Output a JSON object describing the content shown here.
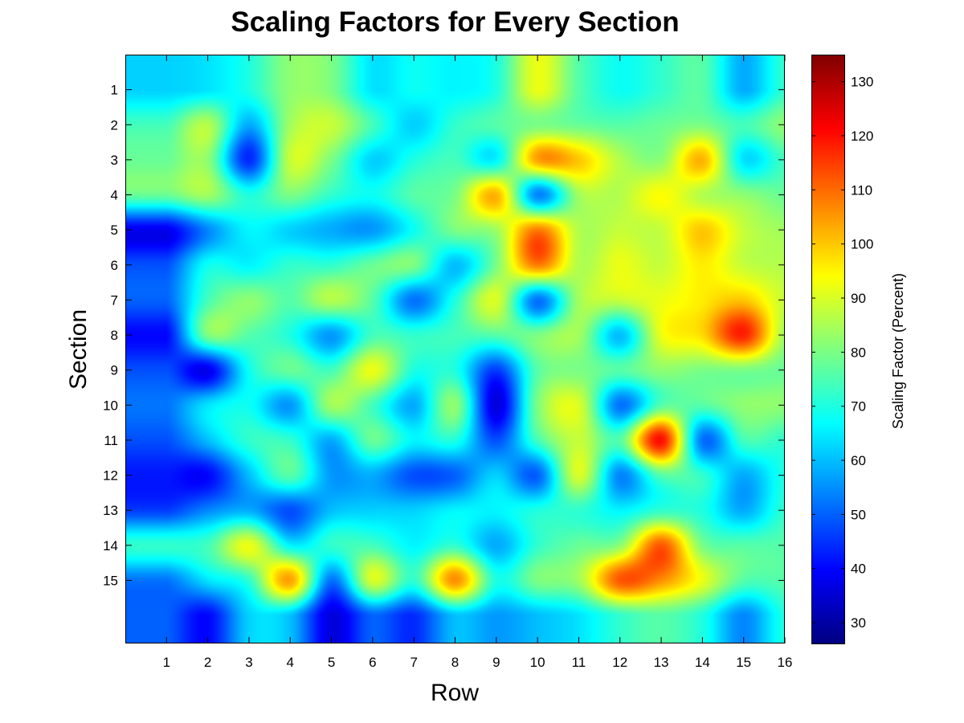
{
  "chart_data": {
    "type": "heatmap",
    "title": "Scaling Factors for Every Section",
    "xlabel": "Row",
    "ylabel": "Section",
    "colorbar_label": "Scaling Factor (Percent)",
    "colormap": "jet",
    "xlim": [
      0,
      16
    ],
    "ylim": [
      0,
      16.8
    ],
    "x_ticks": [
      1,
      2,
      3,
      4,
      5,
      6,
      7,
      8,
      9,
      10,
      11,
      12,
      13,
      14,
      15,
      16
    ],
    "y_ticks": [
      1,
      2,
      3,
      4,
      5,
      6,
      7,
      8,
      9,
      10,
      11,
      12,
      13,
      14,
      15
    ],
    "colorbar_range": [
      26,
      135
    ],
    "colorbar_ticks": [
      30,
      40,
      50,
      60,
      70,
      80,
      90,
      100,
      110,
      120,
      130
    ],
    "rows": [
      1,
      2,
      3,
      4,
      5,
      6,
      7,
      8,
      9,
      10,
      11,
      12,
      13,
      14,
      15,
      16
    ],
    "sections": [
      1,
      2,
      3,
      4,
      5,
      6,
      7,
      8,
      9,
      10,
      11,
      12,
      13,
      14,
      15,
      16
    ],
    "values": [
      [
        62,
        64,
        70,
        82,
        80,
        64,
        68,
        66,
        70,
        92,
        76,
        68,
        72,
        76,
        58,
        72
      ],
      [
        74,
        86,
        58,
        84,
        88,
        74,
        62,
        72,
        76,
        80,
        78,
        76,
        78,
        80,
        74,
        82
      ],
      [
        78,
        82,
        44,
        88,
        80,
        62,
        70,
        74,
        66,
        104,
        100,
        86,
        82,
        102,
        64,
        74
      ],
      [
        78,
        84,
        70,
        80,
        72,
        68,
        76,
        80,
        102,
        54,
        84,
        86,
        94,
        86,
        82,
        78
      ],
      [
        38,
        54,
        66,
        62,
        58,
        56,
        68,
        80,
        84,
        108,
        86,
        88,
        88,
        100,
        88,
        84
      ],
      [
        48,
        68,
        66,
        72,
        72,
        78,
        80,
        60,
        80,
        108,
        86,
        92,
        88,
        96,
        88,
        86
      ],
      [
        50,
        74,
        82,
        76,
        86,
        76,
        52,
        70,
        90,
        52,
        84,
        88,
        92,
        96,
        100,
        88
      ],
      [
        40,
        80,
        76,
        70,
        56,
        74,
        72,
        74,
        76,
        80,
        84,
        60,
        92,
        98,
        118,
        84
      ],
      [
        48,
        38,
        68,
        78,
        74,
        92,
        70,
        70,
        46,
        76,
        80,
        76,
        82,
        80,
        80,
        78
      ],
      [
        52,
        64,
        68,
        56,
        84,
        74,
        58,
        82,
        36,
        80,
        90,
        52,
        76,
        76,
        82,
        82
      ],
      [
        48,
        60,
        72,
        72,
        58,
        78,
        66,
        70,
        48,
        74,
        88,
        76,
        120,
        52,
        74,
        72
      ],
      [
        42,
        40,
        60,
        76,
        56,
        58,
        48,
        50,
        62,
        50,
        90,
        54,
        76,
        72,
        58,
        70
      ],
      [
        46,
        54,
        58,
        48,
        60,
        62,
        62,
        66,
        66,
        70,
        72,
        66,
        72,
        70,
        58,
        72
      ],
      [
        72,
        74,
        92,
        66,
        72,
        74,
        66,
        72,
        58,
        72,
        78,
        82,
        112,
        80,
        76,
        76
      ],
      [
        52,
        64,
        72,
        104,
        52,
        90,
        72,
        106,
        70,
        80,
        84,
        112,
        106,
        92,
        76,
        76
      ],
      [
        50,
        40,
        62,
        60,
        36,
        50,
        44,
        60,
        56,
        60,
        64,
        72,
        76,
        70,
        54,
        70
      ]
    ]
  }
}
